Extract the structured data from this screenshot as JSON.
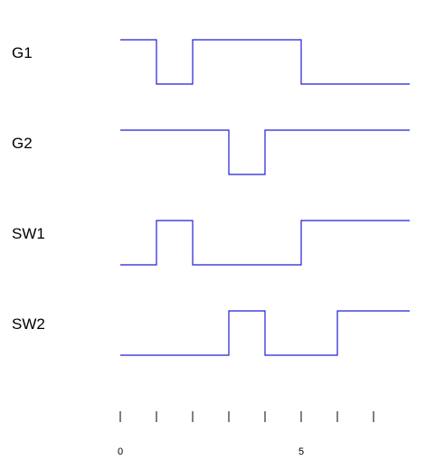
{
  "chart_data": {
    "type": "timing-diagram",
    "colors": {
      "wave": "#1f1fd6",
      "text": "#000000"
    },
    "time_range": [
      0,
      8
    ],
    "ticks": [
      0,
      1,
      2,
      3,
      4,
      5,
      6,
      7
    ],
    "tick_labels": [
      {
        "t": 0,
        "label": "0"
      },
      {
        "t": 5,
        "label": "5"
      }
    ],
    "signals": [
      {
        "name": "G1",
        "initial": 1,
        "transitions": [
          [
            1,
            0
          ],
          [
            2,
            1
          ],
          [
            5,
            0
          ]
        ]
      },
      {
        "name": "G2",
        "initial": 1,
        "transitions": [
          [
            3,
            0
          ],
          [
            4,
            1
          ]
        ]
      },
      {
        "name": "SW1",
        "initial": 0,
        "transitions": [
          [
            1,
            1
          ],
          [
            2,
            0
          ],
          [
            5,
            1
          ]
        ]
      },
      {
        "name": "SW2",
        "initial": 0,
        "transitions": [
          [
            3,
            1
          ],
          [
            4,
            0
          ],
          [
            6,
            1
          ]
        ]
      }
    ]
  }
}
